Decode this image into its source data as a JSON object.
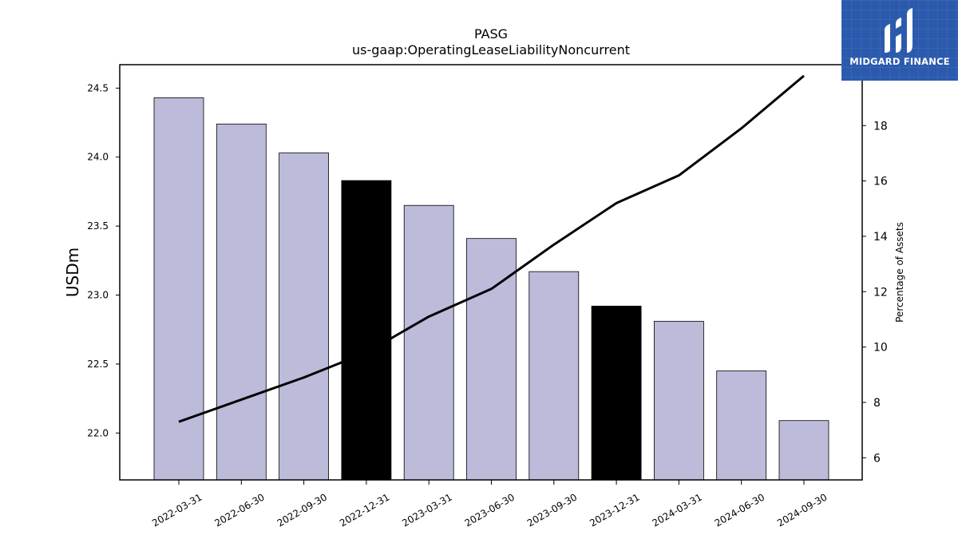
{
  "brand": {
    "logo_text": "MIDGARD FINANCE",
    "color": "#2b5aad"
  },
  "chart_data": {
    "type": "bar",
    "title": "PASG",
    "subtitle": "us-gaap:OperatingLeaseLiabilityNoncurrent",
    "ylabel": "USDm",
    "y2label": "Percentage of Assets",
    "categories": [
      "2022-03-31",
      "2022-06-30",
      "2022-09-30",
      "2022-12-31",
      "2023-03-31",
      "2023-06-30",
      "2023-09-30",
      "2023-12-31",
      "2024-03-31",
      "2024-06-30",
      "2024-09-30"
    ],
    "series": [
      {
        "type": "bar",
        "values": [
          24.43,
          24.24,
          24.03,
          23.83,
          23.65,
          23.41,
          23.17,
          22.92,
          22.81,
          22.45,
          22.09
        ],
        "highlighted": [
          false,
          false,
          false,
          true,
          false,
          false,
          false,
          true,
          false,
          false,
          false
        ],
        "color": "#bdbbda",
        "highlight_color": "#000000"
      },
      {
        "type": "line",
        "axis": "right",
        "values": [
          7.3,
          8.1,
          8.9,
          9.8,
          11.1,
          12.1,
          13.7,
          15.2,
          16.2,
          17.9,
          19.8
        ],
        "color": "#000000"
      }
    ],
    "ylim": [
      21.66,
      24.67
    ],
    "yticks": [
      22.0,
      22.5,
      23.0,
      23.5,
      24.0,
      24.5
    ],
    "y2lim": [
      5.2,
      20.2
    ],
    "y2ticks": [
      6,
      8,
      10,
      12,
      14,
      16,
      18
    ],
    "grid": false,
    "legend": "none"
  }
}
